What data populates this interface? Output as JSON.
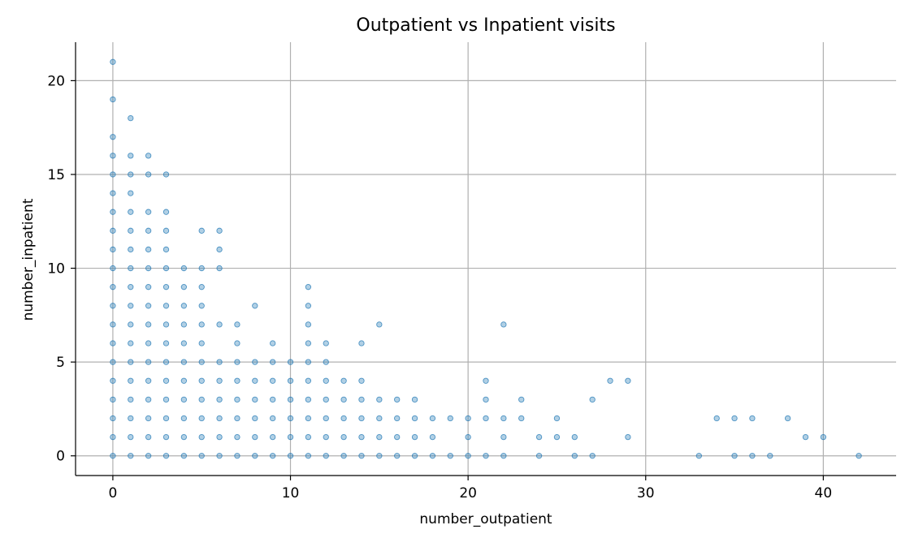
{
  "chart_data": {
    "type": "scatter",
    "title": "Outpatient vs Inpatient visits",
    "xlabel": "number_outpatient",
    "ylabel": "number_inpatient",
    "xlim": [
      -2.1,
      44.1
    ],
    "ylim": [
      -1.05,
      22.05
    ],
    "xticks": [
      0,
      10,
      20,
      30,
      40
    ],
    "yticks": [
      0,
      5,
      10,
      15,
      20
    ],
    "grid": true,
    "marker_color": "#1f77b4",
    "marker_alpha": 0.35,
    "series": [
      {
        "points": [
          [
            0,
            0
          ],
          [
            1,
            0
          ],
          [
            2,
            0
          ],
          [
            3,
            0
          ],
          [
            4,
            0
          ],
          [
            5,
            0
          ],
          [
            6,
            0
          ],
          [
            7,
            0
          ],
          [
            8,
            0
          ],
          [
            9,
            0
          ],
          [
            10,
            0
          ],
          [
            11,
            0
          ],
          [
            12,
            0
          ],
          [
            13,
            0
          ],
          [
            14,
            0
          ],
          [
            15,
            0
          ],
          [
            16,
            0
          ],
          [
            17,
            0
          ],
          [
            18,
            0
          ],
          [
            19,
            0
          ],
          [
            20,
            0
          ],
          [
            21,
            0
          ],
          [
            22,
            0
          ],
          [
            24,
            0
          ],
          [
            26,
            0
          ],
          [
            27,
            0
          ],
          [
            33,
            0
          ],
          [
            35,
            0
          ],
          [
            36,
            0
          ],
          [
            37,
            0
          ],
          [
            42,
            0
          ],
          [
            0,
            1
          ],
          [
            1,
            1
          ],
          [
            2,
            1
          ],
          [
            3,
            1
          ],
          [
            4,
            1
          ],
          [
            5,
            1
          ],
          [
            6,
            1
          ],
          [
            7,
            1
          ],
          [
            8,
            1
          ],
          [
            9,
            1
          ],
          [
            10,
            1
          ],
          [
            11,
            1
          ],
          [
            12,
            1
          ],
          [
            13,
            1
          ],
          [
            14,
            1
          ],
          [
            15,
            1
          ],
          [
            16,
            1
          ],
          [
            17,
            1
          ],
          [
            18,
            1
          ],
          [
            20,
            1
          ],
          [
            22,
            1
          ],
          [
            24,
            1
          ],
          [
            25,
            1
          ],
          [
            26,
            1
          ],
          [
            29,
            1
          ],
          [
            39,
            1
          ],
          [
            40,
            1
          ],
          [
            0,
            2
          ],
          [
            1,
            2
          ],
          [
            2,
            2
          ],
          [
            3,
            2
          ],
          [
            4,
            2
          ],
          [
            5,
            2
          ],
          [
            6,
            2
          ],
          [
            7,
            2
          ],
          [
            8,
            2
          ],
          [
            9,
            2
          ],
          [
            10,
            2
          ],
          [
            11,
            2
          ],
          [
            12,
            2
          ],
          [
            13,
            2
          ],
          [
            14,
            2
          ],
          [
            15,
            2
          ],
          [
            16,
            2
          ],
          [
            17,
            2
          ],
          [
            18,
            2
          ],
          [
            19,
            2
          ],
          [
            20,
            2
          ],
          [
            21,
            2
          ],
          [
            22,
            2
          ],
          [
            23,
            2
          ],
          [
            25,
            2
          ],
          [
            34,
            2
          ],
          [
            35,
            2
          ],
          [
            36,
            2
          ],
          [
            38,
            2
          ],
          [
            0,
            3
          ],
          [
            1,
            3
          ],
          [
            2,
            3
          ],
          [
            3,
            3
          ],
          [
            4,
            3
          ],
          [
            5,
            3
          ],
          [
            6,
            3
          ],
          [
            7,
            3
          ],
          [
            8,
            3
          ],
          [
            9,
            3
          ],
          [
            10,
            3
          ],
          [
            11,
            3
          ],
          [
            12,
            3
          ],
          [
            13,
            3
          ],
          [
            14,
            3
          ],
          [
            15,
            3
          ],
          [
            16,
            3
          ],
          [
            17,
            3
          ],
          [
            21,
            3
          ],
          [
            23,
            3
          ],
          [
            27,
            3
          ],
          [
            0,
            4
          ],
          [
            1,
            4
          ],
          [
            2,
            4
          ],
          [
            3,
            4
          ],
          [
            4,
            4
          ],
          [
            5,
            4
          ],
          [
            6,
            4
          ],
          [
            7,
            4
          ],
          [
            8,
            4
          ],
          [
            9,
            4
          ],
          [
            10,
            4
          ],
          [
            11,
            4
          ],
          [
            12,
            4
          ],
          [
            13,
            4
          ],
          [
            14,
            4
          ],
          [
            21,
            4
          ],
          [
            28,
            4
          ],
          [
            29,
            4
          ],
          [
            0,
            5
          ],
          [
            1,
            5
          ],
          [
            2,
            5
          ],
          [
            3,
            5
          ],
          [
            4,
            5
          ],
          [
            5,
            5
          ],
          [
            6,
            5
          ],
          [
            7,
            5
          ],
          [
            8,
            5
          ],
          [
            9,
            5
          ],
          [
            10,
            5
          ],
          [
            11,
            5
          ],
          [
            12,
            5
          ],
          [
            0,
            6
          ],
          [
            1,
            6
          ],
          [
            2,
            6
          ],
          [
            3,
            6
          ],
          [
            4,
            6
          ],
          [
            5,
            6
          ],
          [
            7,
            6
          ],
          [
            9,
            6
          ],
          [
            11,
            6
          ],
          [
            12,
            6
          ],
          [
            14,
            6
          ],
          [
            0,
            7
          ],
          [
            1,
            7
          ],
          [
            2,
            7
          ],
          [
            3,
            7
          ],
          [
            4,
            7
          ],
          [
            5,
            7
          ],
          [
            6,
            7
          ],
          [
            7,
            7
          ],
          [
            11,
            7
          ],
          [
            15,
            7
          ],
          [
            22,
            7
          ],
          [
            0,
            8
          ],
          [
            1,
            8
          ],
          [
            2,
            8
          ],
          [
            3,
            8
          ],
          [
            4,
            8
          ],
          [
            5,
            8
          ],
          [
            8,
            8
          ],
          [
            11,
            8
          ],
          [
            0,
            9
          ],
          [
            1,
            9
          ],
          [
            2,
            9
          ],
          [
            3,
            9
          ],
          [
            4,
            9
          ],
          [
            5,
            9
          ],
          [
            11,
            9
          ],
          [
            0,
            10
          ],
          [
            1,
            10
          ],
          [
            2,
            10
          ],
          [
            3,
            10
          ],
          [
            4,
            10
          ],
          [
            5,
            10
          ],
          [
            6,
            10
          ],
          [
            0,
            11
          ],
          [
            1,
            11
          ],
          [
            2,
            11
          ],
          [
            3,
            11
          ],
          [
            6,
            11
          ],
          [
            0,
            12
          ],
          [
            1,
            12
          ],
          [
            2,
            12
          ],
          [
            3,
            12
          ],
          [
            5,
            12
          ],
          [
            6,
            12
          ],
          [
            0,
            13
          ],
          [
            1,
            13
          ],
          [
            2,
            13
          ],
          [
            3,
            13
          ],
          [
            0,
            14
          ],
          [
            1,
            14
          ],
          [
            0,
            15
          ],
          [
            1,
            15
          ],
          [
            2,
            15
          ],
          [
            3,
            15
          ],
          [
            0,
            16
          ],
          [
            1,
            16
          ],
          [
            2,
            16
          ],
          [
            0,
            17
          ],
          [
            1,
            18
          ],
          [
            0,
            19
          ],
          [
            0,
            21
          ]
        ]
      }
    ]
  }
}
